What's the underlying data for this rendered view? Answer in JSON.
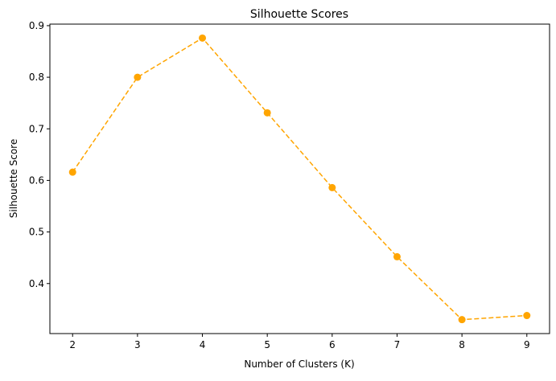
{
  "chart_data": {
    "type": "line",
    "title": "Silhouette Scores",
    "xlabel": "Number of Clusters (K)",
    "ylabel": "Silhouette Score",
    "x": [
      2,
      3,
      4,
      5,
      6,
      7,
      8,
      9
    ],
    "series": [
      {
        "values": [
          0.616,
          0.8,
          0.876,
          0.731,
          0.586,
          0.452,
          0.33,
          0.338
        ],
        "color": "#ffa500",
        "line_style": "dashed",
        "marker": "circle"
      }
    ],
    "xlim": [
      1.65,
      9.35
    ],
    "ylim": [
      0.303,
      0.903
    ],
    "xticks": [
      2,
      3,
      4,
      5,
      6,
      7,
      8,
      9
    ],
    "yticks": [
      0.4,
      0.5,
      0.6,
      0.7,
      0.8,
      0.9
    ],
    "ytick_labels": [
      "0.4",
      "0.5",
      "0.6",
      "0.7",
      "0.8",
      "0.9"
    ],
    "grid": false
  }
}
